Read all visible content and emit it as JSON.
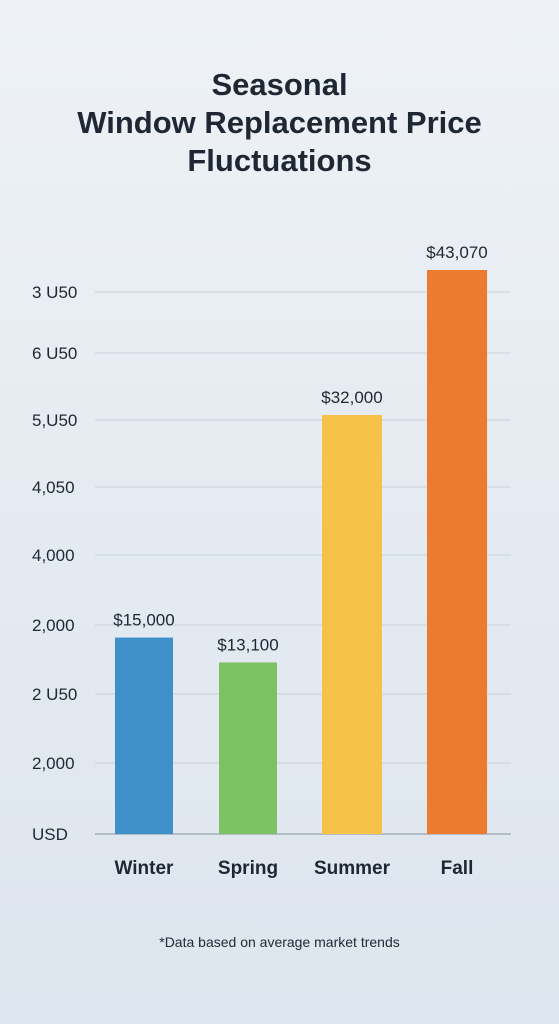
{
  "chart_data": {
    "type": "bar",
    "title_lines": [
      "Seasonal",
      "Window Replacement Price",
      "Fluctuations"
    ],
    "categories": [
      "Winter",
      "Spring",
      "Summer",
      "Fall"
    ],
    "values": [
      15000,
      13100,
      32000,
      43070
    ],
    "data_labels": [
      "$15,000",
      "$13,100",
      "$32,000",
      "$43,070"
    ],
    "y_tick_labels": [
      "USD",
      "2,000",
      "2 U50",
      "2,000",
      "4,000",
      "4,050",
      "5,U50",
      "6 U50",
      "3 U50"
    ],
    "grid": true,
    "legend": "none",
    "colors": [
      "#3f8fc9",
      "#7cc163",
      "#f6c247",
      "#ec7a2f"
    ]
  },
  "footnote": "*Data based on average market trends"
}
